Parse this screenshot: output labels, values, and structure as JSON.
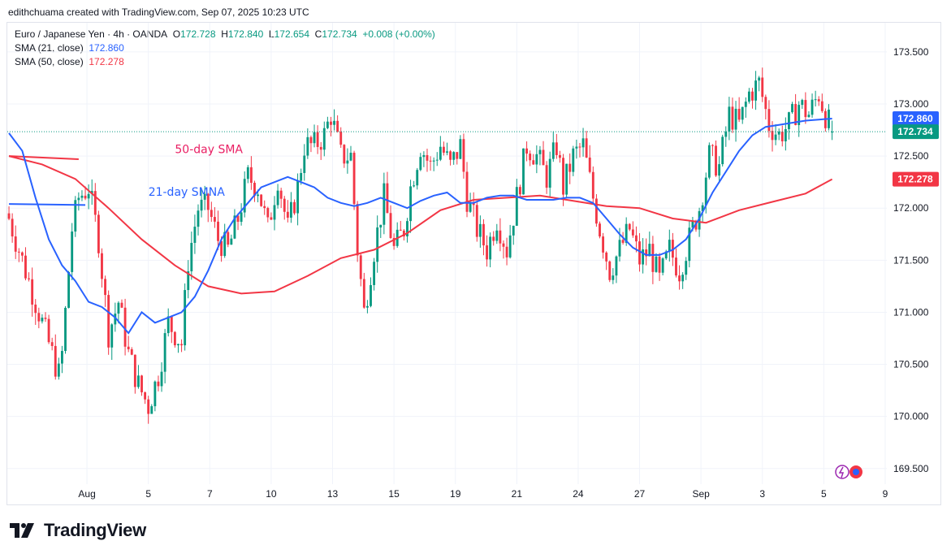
{
  "credit": "edithchuama created with TradingView.com, Sep 07, 2025 10:23 UTC",
  "legend": {
    "symbol": "Euro / Japanese Yen · 4h · OANDA",
    "open_label": "O",
    "open": "172.728",
    "high_label": "H",
    "high": "172.840",
    "low_label": "L",
    "low": "172.654",
    "close_label": "C",
    "close": "172.734",
    "change": "+0.008 (+0.00%)",
    "sma21_label": "SMA (21, close)",
    "sma21_value": "172.860",
    "sma50_label": "SMA (50, close)",
    "sma50_value": "172.278"
  },
  "brand": "TradingView",
  "colors": {
    "up": "#089981",
    "down": "#f23645",
    "sma21": "#2962ff",
    "sma50": "#f23645",
    "grid": "#f0f3fa"
  },
  "chart_data": {
    "type": "candlestick",
    "ylim": [
      169.35,
      173.78
    ],
    "grid": true,
    "price_ticks": [
      "173.500",
      "173.000",
      "172.500",
      "172.000",
      "171.500",
      "171.000",
      "170.500",
      "170.000",
      "169.500"
    ],
    "x_ticks": [
      {
        "label": "Aug",
        "index": 23.5
      },
      {
        "label": "5",
        "index": 42
      },
      {
        "label": "7",
        "index": 60.5
      },
      {
        "label": "10",
        "index": 79
      },
      {
        "label": "13",
        "index": 97.5
      },
      {
        "label": "15",
        "index": 116
      },
      {
        "label": "19",
        "index": 134.5
      },
      {
        "label": "21",
        "index": 153
      },
      {
        "label": "24",
        "index": 171.5
      },
      {
        "label": "27",
        "index": 190
      },
      {
        "label": "Sep",
        "index": 208.5
      },
      {
        "label": "3",
        "index": 227
      },
      {
        "label": "5",
        "index": 245.5
      },
      {
        "label": "9",
        "index": 264
      }
    ],
    "price_labels": [
      {
        "value": 172.86,
        "text": "172.860",
        "color": "#2962ff"
      },
      {
        "value": 172.734,
        "text": "172.734",
        "color": "#089981"
      },
      {
        "value": 172.278,
        "text": "172.278",
        "color": "#f23645"
      }
    ],
    "annotations": [
      {
        "text": "50-day SMA",
        "index": 50,
        "price": 172.53,
        "color": "#e91e63"
      },
      {
        "text": "21-day SMNA",
        "index": 42,
        "price": 172.12,
        "color": "#2962ff"
      }
    ],
    "ohlc_anchors": [
      [
        0,
        171.9
      ],
      [
        3,
        171.6
      ],
      [
        6,
        171.3
      ],
      [
        9,
        171.0
      ],
      [
        12,
        170.7
      ],
      [
        15,
        170.4
      ],
      [
        16,
        170.6
      ],
      [
        19,
        171.8
      ],
      [
        21,
        172.1
      ],
      [
        24,
        172.2
      ],
      [
        27,
        171.7
      ],
      [
        30,
        170.8
      ],
      [
        33,
        171.1
      ],
      [
        36,
        170.6
      ],
      [
        39,
        170.3
      ],
      [
        42,
        170.1
      ],
      [
        45,
        170.4
      ],
      [
        48,
        170.9
      ],
      [
        52,
        170.7
      ],
      [
        54,
        171.5
      ],
      [
        57,
        172.0
      ],
      [
        60,
        172.0
      ],
      [
        63,
        171.7
      ],
      [
        66,
        171.6
      ],
      [
        69,
        171.9
      ],
      [
        72,
        172.3
      ],
      [
        75,
        172.2
      ],
      [
        78,
        171.8
      ],
      [
        81,
        172.3
      ],
      [
        84,
        171.8
      ],
      [
        87,
        172.2
      ],
      [
        89,
        172.6
      ],
      [
        92,
        172.6
      ],
      [
        95,
        172.7
      ],
      [
        97,
        172.9
      ],
      [
        100,
        172.5
      ],
      [
        103,
        172.5
      ],
      [
        105,
        171.6
      ],
      [
        107,
        171.0
      ],
      [
        110,
        171.6
      ],
      [
        113,
        172.1
      ],
      [
        116,
        171.6
      ],
      [
        119,
        171.8
      ],
      [
        121,
        172.2
      ],
      [
        124,
        172.6
      ],
      [
        127,
        172.4
      ],
      [
        130,
        172.6
      ],
      [
        133,
        172.4
      ],
      [
        136,
        172.6
      ],
      [
        138,
        172.1
      ],
      [
        141,
        171.8
      ],
      [
        144,
        171.6
      ],
      [
        147,
        171.9
      ],
      [
        150,
        171.6
      ],
      [
        153,
        172.1
      ],
      [
        156,
        172.6
      ],
      [
        159,
        172.5
      ],
      [
        162,
        172.3
      ],
      [
        165,
        172.6
      ],
      [
        167,
        172.2
      ],
      [
        170,
        172.5
      ],
      [
        173,
        172.6
      ],
      [
        176,
        172.1
      ],
      [
        178,
        171.8
      ],
      [
        181,
        171.4
      ],
      [
        184,
        171.6
      ],
      [
        187,
        171.8
      ],
      [
        190,
        171.5
      ],
      [
        193,
        171.6
      ],
      [
        196,
        171.3
      ],
      [
        199,
        171.6
      ],
      [
        202,
        171.4
      ],
      [
        205,
        171.7
      ],
      [
        208,
        172.0
      ],
      [
        211,
        172.5
      ],
      [
        214,
        172.4
      ],
      [
        217,
        172.9
      ],
      [
        220,
        172.8
      ],
      [
        223,
        173.1
      ],
      [
        226,
        173.2
      ],
      [
        229,
        172.8
      ],
      [
        232,
        172.7
      ],
      [
        235,
        172.8
      ],
      [
        238,
        173.0
      ],
      [
        241,
        172.9
      ],
      [
        244,
        173.1
      ],
      [
        246,
        172.9
      ],
      [
        248,
        172.734
      ]
    ],
    "sma21": [
      [
        0,
        172.72
      ],
      [
        4,
        172.55
      ],
      [
        8,
        172.1
      ],
      [
        12,
        171.7
      ],
      [
        16,
        171.45
      ],
      [
        20,
        171.3
      ],
      [
        24,
        171.1
      ],
      [
        28,
        171.05
      ],
      [
        32,
        170.95
      ],
      [
        36,
        170.8
      ],
      [
        40,
        171.0
      ],
      [
        44,
        170.9
      ],
      [
        48,
        170.95
      ],
      [
        52,
        171.0
      ],
      [
        56,
        171.15
      ],
      [
        60,
        171.4
      ],
      [
        64,
        171.7
      ],
      [
        68,
        171.9
      ],
      [
        72,
        172.05
      ],
      [
        76,
        172.2
      ],
      [
        80,
        172.25
      ],
      [
        84,
        172.3
      ],
      [
        88,
        172.25
      ],
      [
        92,
        172.2
      ],
      [
        96,
        172.1
      ],
      [
        100,
        172.05
      ],
      [
        104,
        172.02
      ],
      [
        108,
        172.05
      ],
      [
        112,
        172.1
      ],
      [
        116,
        172.05
      ],
      [
        120,
        172.0
      ],
      [
        124,
        172.07
      ],
      [
        128,
        172.12
      ],
      [
        132,
        172.15
      ],
      [
        136,
        172.05
      ],
      [
        140,
        172.05
      ],
      [
        144,
        172.1
      ],
      [
        148,
        172.12
      ],
      [
        152,
        172.12
      ],
      [
        156,
        172.08
      ],
      [
        160,
        172.08
      ],
      [
        164,
        172.08
      ],
      [
        168,
        172.1
      ],
      [
        172,
        172.1
      ],
      [
        176,
        172.05
      ],
      [
        180,
        171.9
      ],
      [
        184,
        171.75
      ],
      [
        188,
        171.62
      ],
      [
        192,
        171.55
      ],
      [
        196,
        171.55
      ],
      [
        200,
        171.6
      ],
      [
        204,
        171.7
      ],
      [
        208,
        171.9
      ],
      [
        212,
        172.15
      ],
      [
        216,
        172.35
      ],
      [
        220,
        172.55
      ],
      [
        224,
        172.7
      ],
      [
        228,
        172.78
      ],
      [
        232,
        172.8
      ],
      [
        236,
        172.82
      ],
      [
        240,
        172.84
      ],
      [
        244,
        172.85
      ],
      [
        248,
        172.86
      ]
    ],
    "sma50": [
      [
        0,
        172.5
      ],
      [
        10,
        172.42
      ],
      [
        20,
        172.28
      ],
      [
        30,
        172.0
      ],
      [
        40,
        171.7
      ],
      [
        50,
        171.45
      ],
      [
        60,
        171.25
      ],
      [
        70,
        171.18
      ],
      [
        80,
        171.2
      ],
      [
        90,
        171.35
      ],
      [
        100,
        171.52
      ],
      [
        110,
        171.6
      ],
      [
        120,
        171.76
      ],
      [
        130,
        171.98
      ],
      [
        140,
        172.08
      ],
      [
        150,
        172.1
      ],
      [
        160,
        172.12
      ],
      [
        170,
        172.07
      ],
      [
        180,
        172.02
      ],
      [
        190,
        172.0
      ],
      [
        200,
        171.9
      ],
      [
        210,
        171.86
      ],
      [
        220,
        171.98
      ],
      [
        230,
        172.06
      ],
      [
        240,
        172.14
      ],
      [
        248,
        172.278
      ]
    ],
    "ref_lines": [
      {
        "color": "#f23645",
        "from": [
          0,
          172.5
        ],
        "to": [
          21,
          172.47
        ]
      },
      {
        "color": "#2962ff",
        "from": [
          0,
          172.04
        ],
        "to": [
          23,
          172.03
        ]
      }
    ]
  }
}
